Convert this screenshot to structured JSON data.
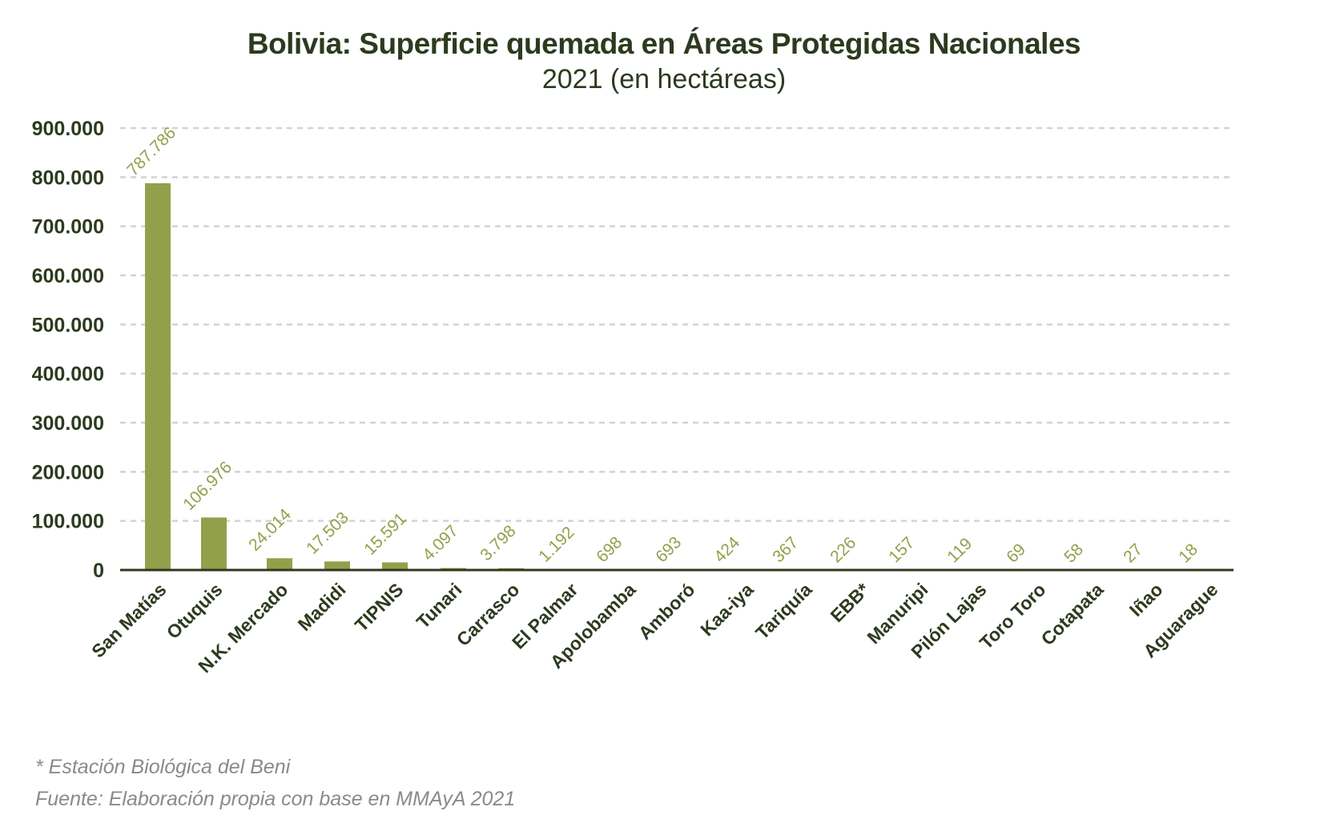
{
  "chart_data": {
    "type": "bar",
    "title": "Bolivia: Superficie quemada en Áreas Protegidas Nacionales",
    "subtitle": "2021 (en hectáreas)",
    "xlabel": "",
    "ylabel": "",
    "ylim": [
      0,
      900000
    ],
    "grid": true,
    "legend": "none",
    "yticks": [
      0,
      100000,
      200000,
      300000,
      400000,
      500000,
      600000,
      700000,
      800000,
      900000
    ],
    "ytick_labels": [
      "0",
      "100.000",
      "200.000",
      "300.000",
      "400.000",
      "500.000",
      "600.000",
      "700.000",
      "800.000",
      "900.000"
    ],
    "categories": [
      "San Matías",
      "Otuquis",
      "N.K. Mercado",
      "Madidi",
      "TIPNIS",
      "Tunari",
      "Carrasco",
      "El Palmar",
      "Apolobamba",
      "Amboró",
      "Kaa-iya",
      "Tariquía",
      "EBB*",
      "Manuripi",
      "Pilón Lajas",
      "Toro Toro",
      "Cotapata",
      "Iñao",
      "Aguarague"
    ],
    "values": [
      787786,
      106976,
      24014,
      17503,
      15591,
      4097,
      3798,
      1192,
      698,
      693,
      424,
      367,
      226,
      157,
      119,
      69,
      58,
      27,
      18
    ],
    "value_labels": [
      "787.786",
      "106.976",
      "24.014",
      "17.503",
      "15.591",
      "4.097",
      "3.798",
      "1.192",
      "698",
      "693",
      "424",
      "367",
      "226",
      "157",
      "119",
      "69",
      "58",
      "27",
      "18"
    ],
    "colors": {
      "bar": "#93a04b",
      "label": "#93a04b",
      "axis": "#2c3a1e",
      "grid": "#d3d3d3",
      "text": "#2c3a1e"
    }
  },
  "notes": {
    "footnote": "* Estación Biológica del Beni",
    "source": "Fuente: Elaboración propia con base en MMAyA 2021"
  }
}
